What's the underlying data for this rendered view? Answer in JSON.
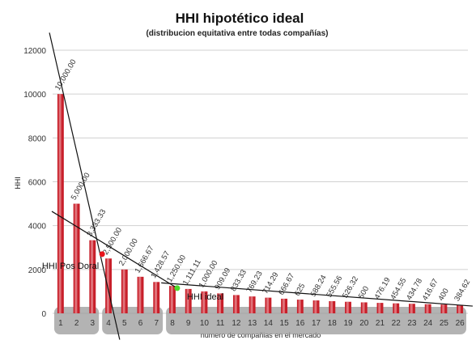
{
  "colors": {
    "bar": "#c81f2a",
    "bar_highlight": "#f2b7b9",
    "grid": "#d0d0d0",
    "trend": "#111111",
    "point_pos_doral": "#e8141c",
    "point_ideal": "#4fdc2a",
    "label_box": "#9a9a9a"
  },
  "chart_data": {
    "type": "bar",
    "title": "HHI hipotético ideal",
    "subtitle": "(distribucion equitativa entre todas compañías)",
    "xlabel": "numero de compañias en el mercado",
    "ylabel": "HHI",
    "ylim": [
      0,
      12000
    ],
    "yticks": [
      "0",
      "2000",
      "4000",
      "6000",
      "8000",
      "10000",
      "12000"
    ],
    "grid": true,
    "legend": "none",
    "categories": [
      "1",
      "2",
      "3",
      "4",
      "5",
      "6",
      "7",
      "8",
      "9",
      "10",
      "11",
      "12",
      "13",
      "14",
      "15",
      "16",
      "17",
      "18",
      "19",
      "20",
      "21",
      "22",
      "23",
      "24",
      "25",
      "26"
    ],
    "values": [
      10000,
      5000,
      3333.33,
      2500,
      2000,
      1666.67,
      1428.57,
      1250,
      1111.11,
      1000,
      909.09,
      833.33,
      769.23,
      714.29,
      666.67,
      625,
      588.24,
      555.56,
      526.32,
      500,
      476.19,
      454.55,
      434.78,
      416.67,
      400,
      384.62
    ],
    "data_labels": [
      "10,000.00",
      "5,000.00",
      "3,333.33",
      "2,500.00",
      "2,000.00",
      "1,666.67",
      "1,428.57",
      "1,250.00",
      "1,111.11",
      "1,000.00",
      "909.09",
      "833.33",
      "769.23",
      "714.29",
      "666.67",
      "625",
      "588.24",
      "555.56",
      "526.32",
      "500",
      "476.19",
      "454.55",
      "434.78",
      "416.67",
      "400",
      "384.62"
    ],
    "annotations": [
      {
        "text": "HHI Pos Doral",
        "x": 3.6,
        "y": 2700
      },
      {
        "text": "HHI ideal",
        "x": 8.3,
        "y": 1150
      }
    ]
  }
}
